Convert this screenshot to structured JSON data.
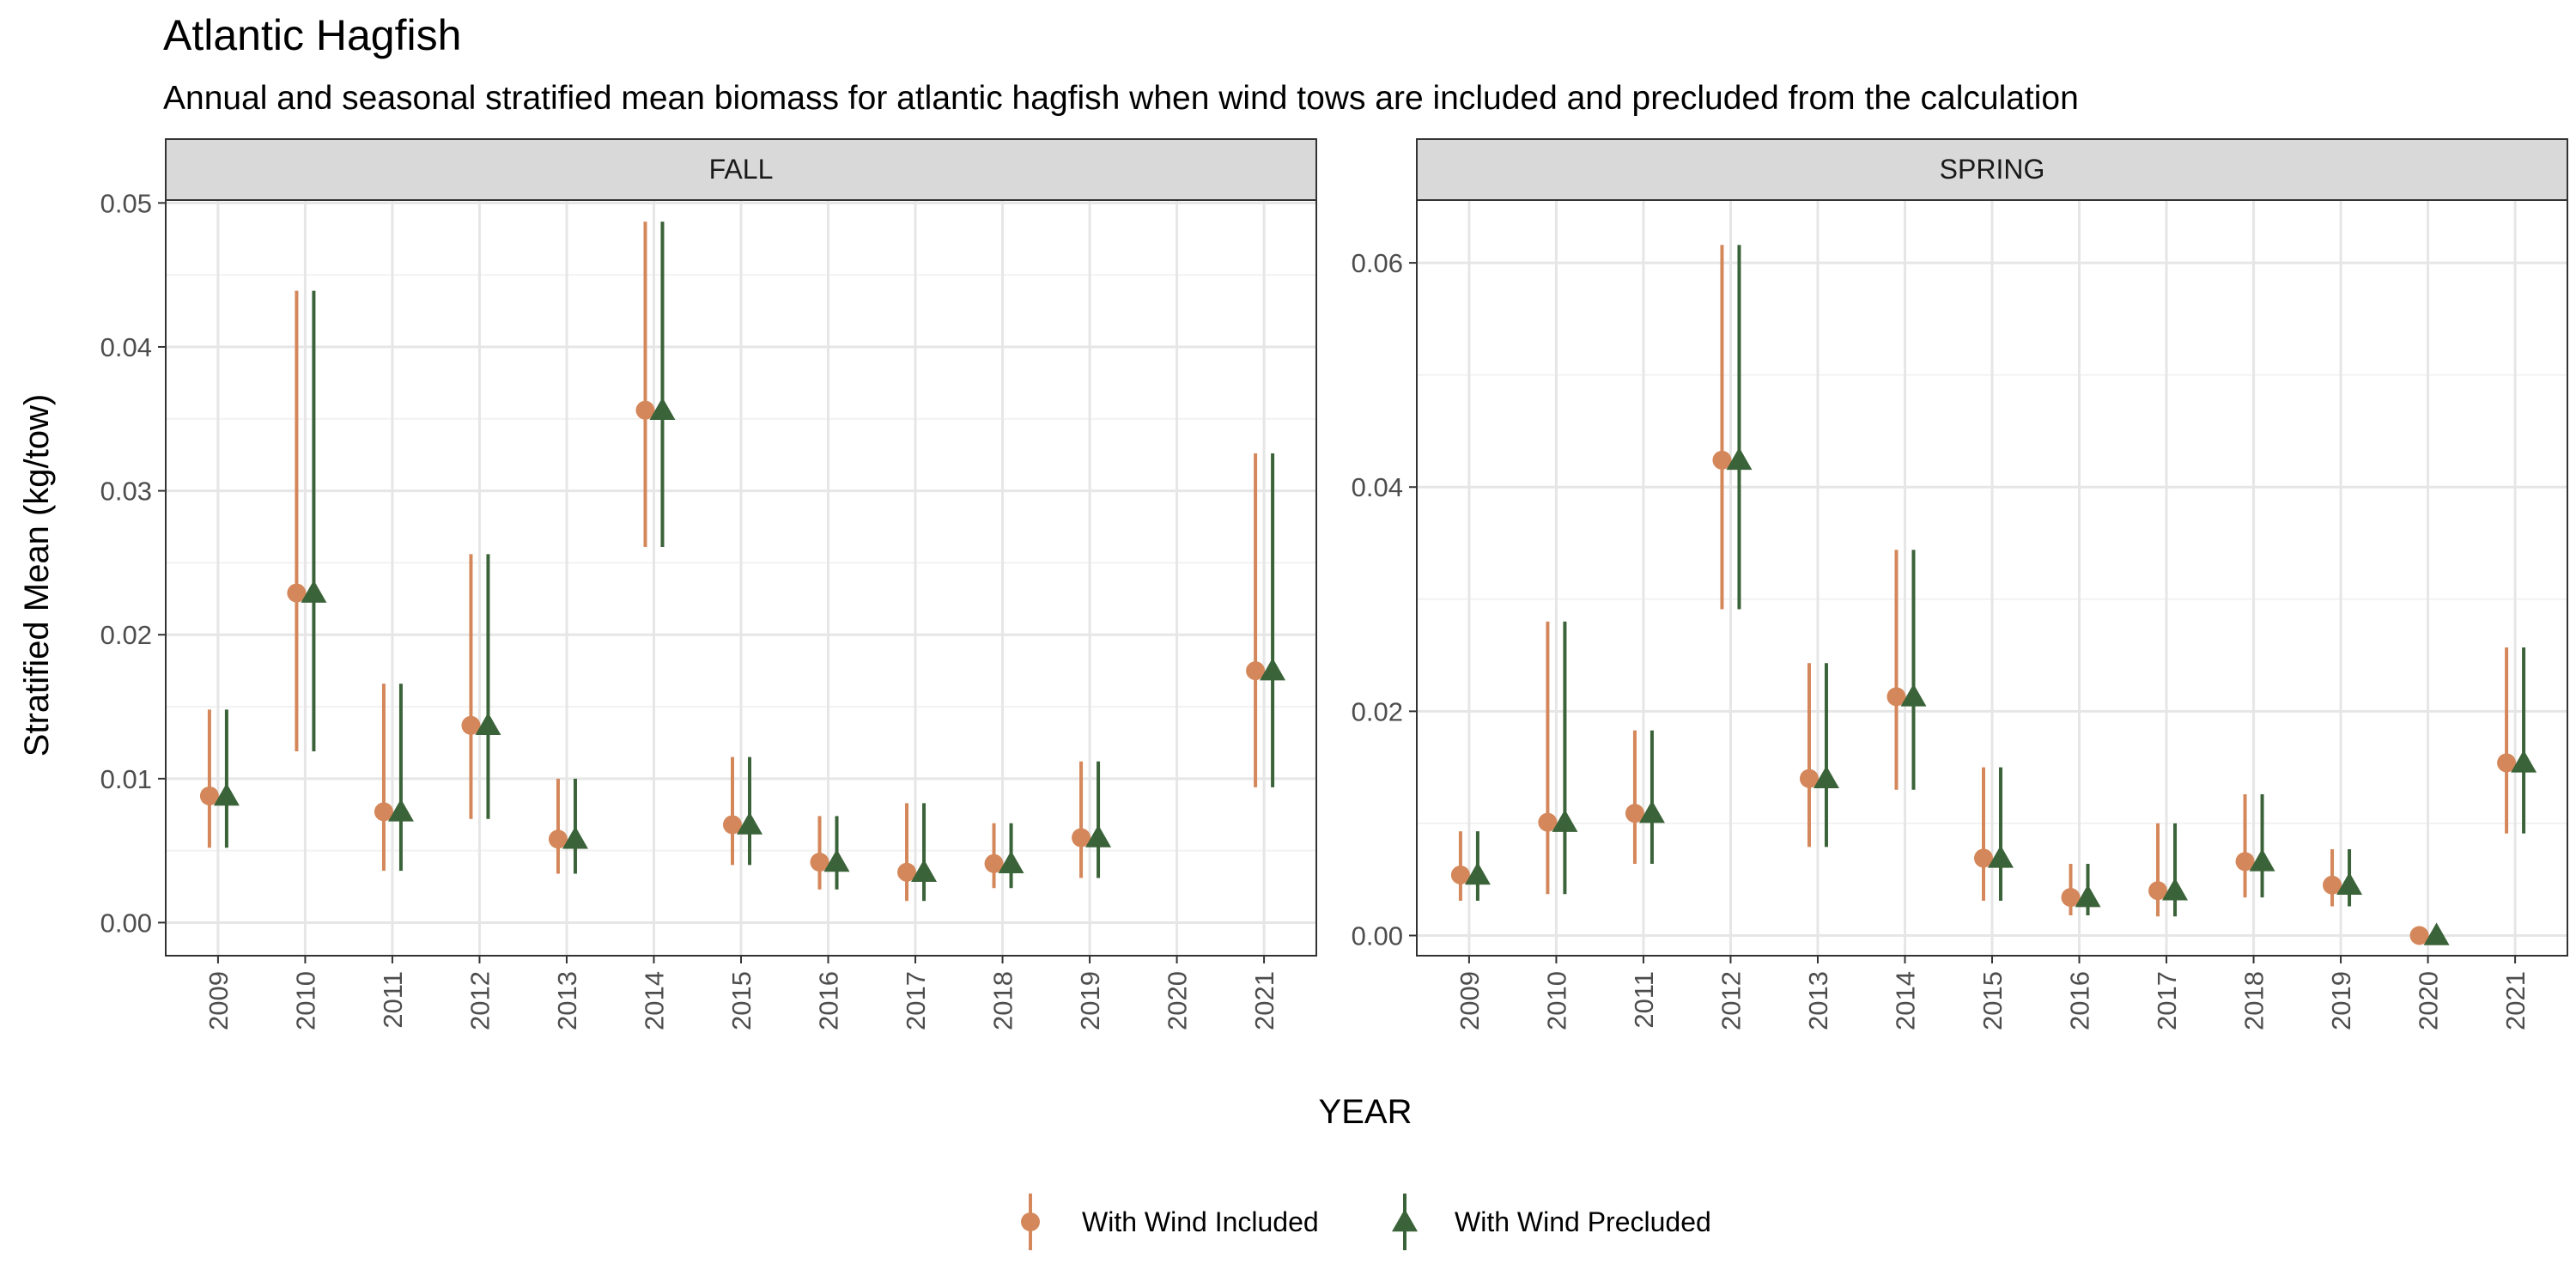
{
  "title": "Atlantic Hagfish",
  "subtitle": "Annual and seasonal stratified mean biomass for atlantic hagfish when wind tows are included and precluded from the calculation",
  "chart_data": {
    "type": "scatter",
    "xlabel": "YEAR",
    "ylabel": "Stratified Mean (kg/tow)",
    "categories": [
      "2009",
      "2010",
      "2011",
      "2012",
      "2013",
      "2014",
      "2015",
      "2016",
      "2017",
      "2018",
      "2019",
      "2020",
      "2021"
    ],
    "legend": {
      "position": "bottom",
      "entries": [
        {
          "label": "With Wind Included",
          "shape": "circle",
          "color": "#d4875a"
        },
        {
          "label": "With Wind Precluded",
          "shape": "triangle",
          "color": "#3b6339"
        }
      ]
    },
    "grid": true,
    "panels": [
      {
        "label": "FALL",
        "ylim": [
          -0.0023,
          0.0502
        ],
        "yticks": [
          0.0,
          0.01,
          0.02,
          0.03,
          0.04,
          0.05
        ],
        "ytick_labels": [
          "0.00",
          "0.01",
          "0.02",
          "0.03",
          "0.04",
          "0.05"
        ],
        "series": [
          {
            "name": "With Wind Included",
            "values": [
              0.0088,
              0.0229,
              0.0077,
              0.0137,
              0.0058,
              0.0356,
              0.0068,
              0.0042,
              0.0035,
              0.0041,
              0.0059,
              null,
              0.0175
            ],
            "lower": [
              0.0052,
              0.0119,
              0.0036,
              0.0072,
              0.0034,
              0.0261,
              0.004,
              0.0023,
              0.0015,
              0.0024,
              0.0031,
              null,
              0.0094
            ],
            "upper": [
              0.0148,
              0.0439,
              0.0166,
              0.0256,
              0.01,
              0.0487,
              0.0115,
              0.0074,
              0.0083,
              0.0069,
              0.0112,
              null,
              0.0326
            ]
          },
          {
            "name": "With Wind Precluded",
            "values": [
              0.0088,
              0.0229,
              0.0077,
              0.0137,
              0.0058,
              0.0356,
              0.0068,
              0.0042,
              0.0035,
              0.0041,
              0.0059,
              null,
              0.0175
            ],
            "lower": [
              0.0052,
              0.0119,
              0.0036,
              0.0072,
              0.0034,
              0.0261,
              0.004,
              0.0023,
              0.0015,
              0.0024,
              0.0031,
              null,
              0.0094
            ],
            "upper": [
              0.0148,
              0.0439,
              0.0166,
              0.0256,
              0.01,
              0.0487,
              0.0115,
              0.0074,
              0.0083,
              0.0069,
              0.0112,
              null,
              0.0326
            ]
          }
        ]
      },
      {
        "label": "SPRING",
        "ylim": [
          -0.0018,
          0.0656
        ],
        "yticks": [
          0.0,
          0.02,
          0.04,
          0.06
        ],
        "ytick_labels": [
          "0.00",
          "0.02",
          "0.04",
          "0.06"
        ],
        "series": [
          {
            "name": "With Wind Included",
            "values": [
              0.0054,
              0.0101,
              0.0109,
              0.0424,
              0.014,
              0.0213,
              0.0069,
              0.0034,
              0.004,
              0.0066,
              0.0045,
              0.0,
              0.0154
            ],
            "lower": [
              0.0031,
              0.0037,
              0.0064,
              0.0291,
              0.0079,
              0.013,
              0.0031,
              0.0018,
              0.0017,
              0.0034,
              0.0026,
              0.0,
              0.0091
            ],
            "upper": [
              0.0093,
              0.028,
              0.0183,
              0.0616,
              0.0243,
              0.0344,
              0.015,
              0.0064,
              0.01,
              0.0126,
              0.0077,
              0.0,
              0.0257
            ]
          },
          {
            "name": "With Wind Precluded",
            "values": [
              0.0054,
              0.0101,
              0.0109,
              0.0424,
              0.014,
              0.0213,
              0.0069,
              0.0034,
              0.004,
              0.0066,
              0.0045,
              0.0,
              0.0154
            ],
            "lower": [
              0.0031,
              0.0037,
              0.0064,
              0.0291,
              0.0079,
              0.013,
              0.0031,
              0.0018,
              0.0017,
              0.0034,
              0.0026,
              0.0,
              0.0091
            ],
            "upper": [
              0.0093,
              0.028,
              0.0183,
              0.0616,
              0.0243,
              0.0344,
              0.015,
              0.0064,
              0.01,
              0.0126,
              0.0077,
              0.0,
              0.0257
            ]
          }
        ]
      }
    ]
  }
}
